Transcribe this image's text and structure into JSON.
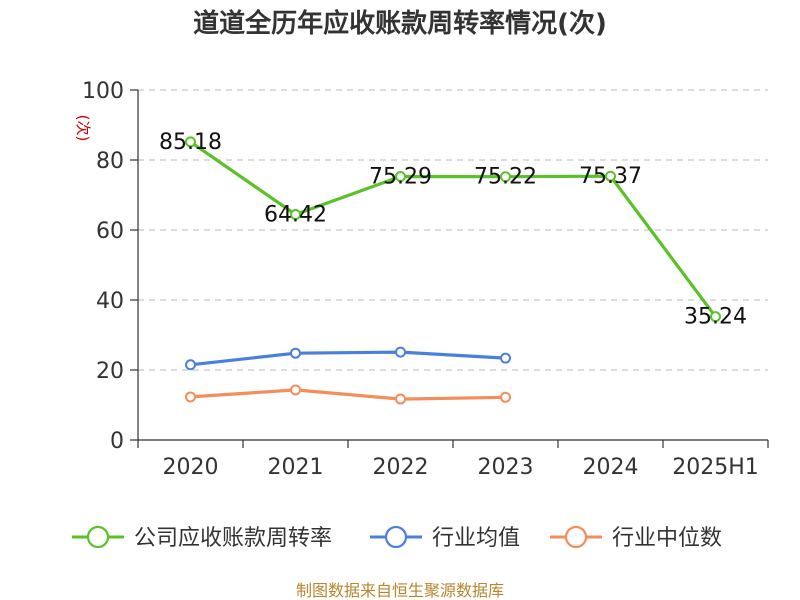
{
  "chart_data": {
    "type": "line",
    "title": "道道全历年应收账款周转率情况(次)",
    "ylabel": "(次)",
    "categories": [
      "2020",
      "2021",
      "2022",
      "2023",
      "2024",
      "2025H1"
    ],
    "ylim": [
      0,
      100
    ],
    "yticks": [
      0,
      20,
      40,
      60,
      80,
      100
    ],
    "grid": true,
    "legend_position": "bottom",
    "series": [
      {
        "name": "公司应收账款周转率",
        "color": "#5ac229",
        "values": [
          85.18,
          64.42,
          75.29,
          75.22,
          75.37,
          35.24
        ],
        "labels": [
          "85.18",
          "64.42",
          "75.29",
          "75.22",
          "75.37",
          "35.24"
        ]
      },
      {
        "name": "行业均值",
        "color": "#4a7fdc",
        "values": [
          21.5,
          24.8,
          25.1,
          23.4,
          null,
          null
        ]
      },
      {
        "name": "行业中位数",
        "color": "#f58d5a",
        "values": [
          12.3,
          14.3,
          11.7,
          12.2,
          null,
          null
        ]
      }
    ]
  },
  "source_text": "制图数据来自恒生聚源数据库"
}
